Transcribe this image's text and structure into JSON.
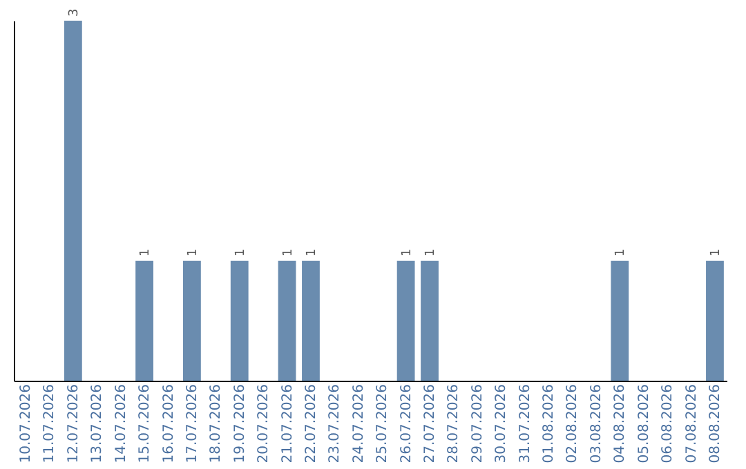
{
  "chart_data": {
    "type": "bar",
    "categories": [
      "10.07.2026",
      "11.07.2026",
      "12.07.2026",
      "13.07.2026",
      "14.07.2026",
      "15.07.2026",
      "16.07.2026",
      "17.07.2026",
      "18.07.2026",
      "19.07.2026",
      "20.07.2026",
      "21.07.2026",
      "22.07.2026",
      "23.07.2026",
      "24.07.2026",
      "25.07.2026",
      "26.07.2026",
      "27.07.2026",
      "28.07.2026",
      "29.07.2026",
      "30.07.2026",
      "31.07.2026",
      "01.08.2026",
      "02.08.2026",
      "03.08.2026",
      "04.08.2026",
      "05.08.2026",
      "06.08.2026",
      "07.08.2026",
      "08.08.2026"
    ],
    "values": [
      0,
      0,
      3,
      0,
      0,
      1,
      0,
      1,
      0,
      1,
      0,
      1,
      1,
      0,
      0,
      0,
      1,
      1,
      0,
      0,
      0,
      0,
      0,
      0,
      0,
      1,
      0,
      0,
      0,
      1
    ],
    "value_labels": [
      null,
      null,
      "3",
      null,
      null,
      "1",
      null,
      "1",
      null,
      "1",
      null,
      "1",
      "1",
      null,
      null,
      null,
      "1",
      "1",
      null,
      null,
      null,
      null,
      null,
      null,
      null,
      "1",
      null,
      null,
      null,
      "1"
    ],
    "color": "#6a8caf",
    "tick_labels": "x",
    "grid": false
  }
}
